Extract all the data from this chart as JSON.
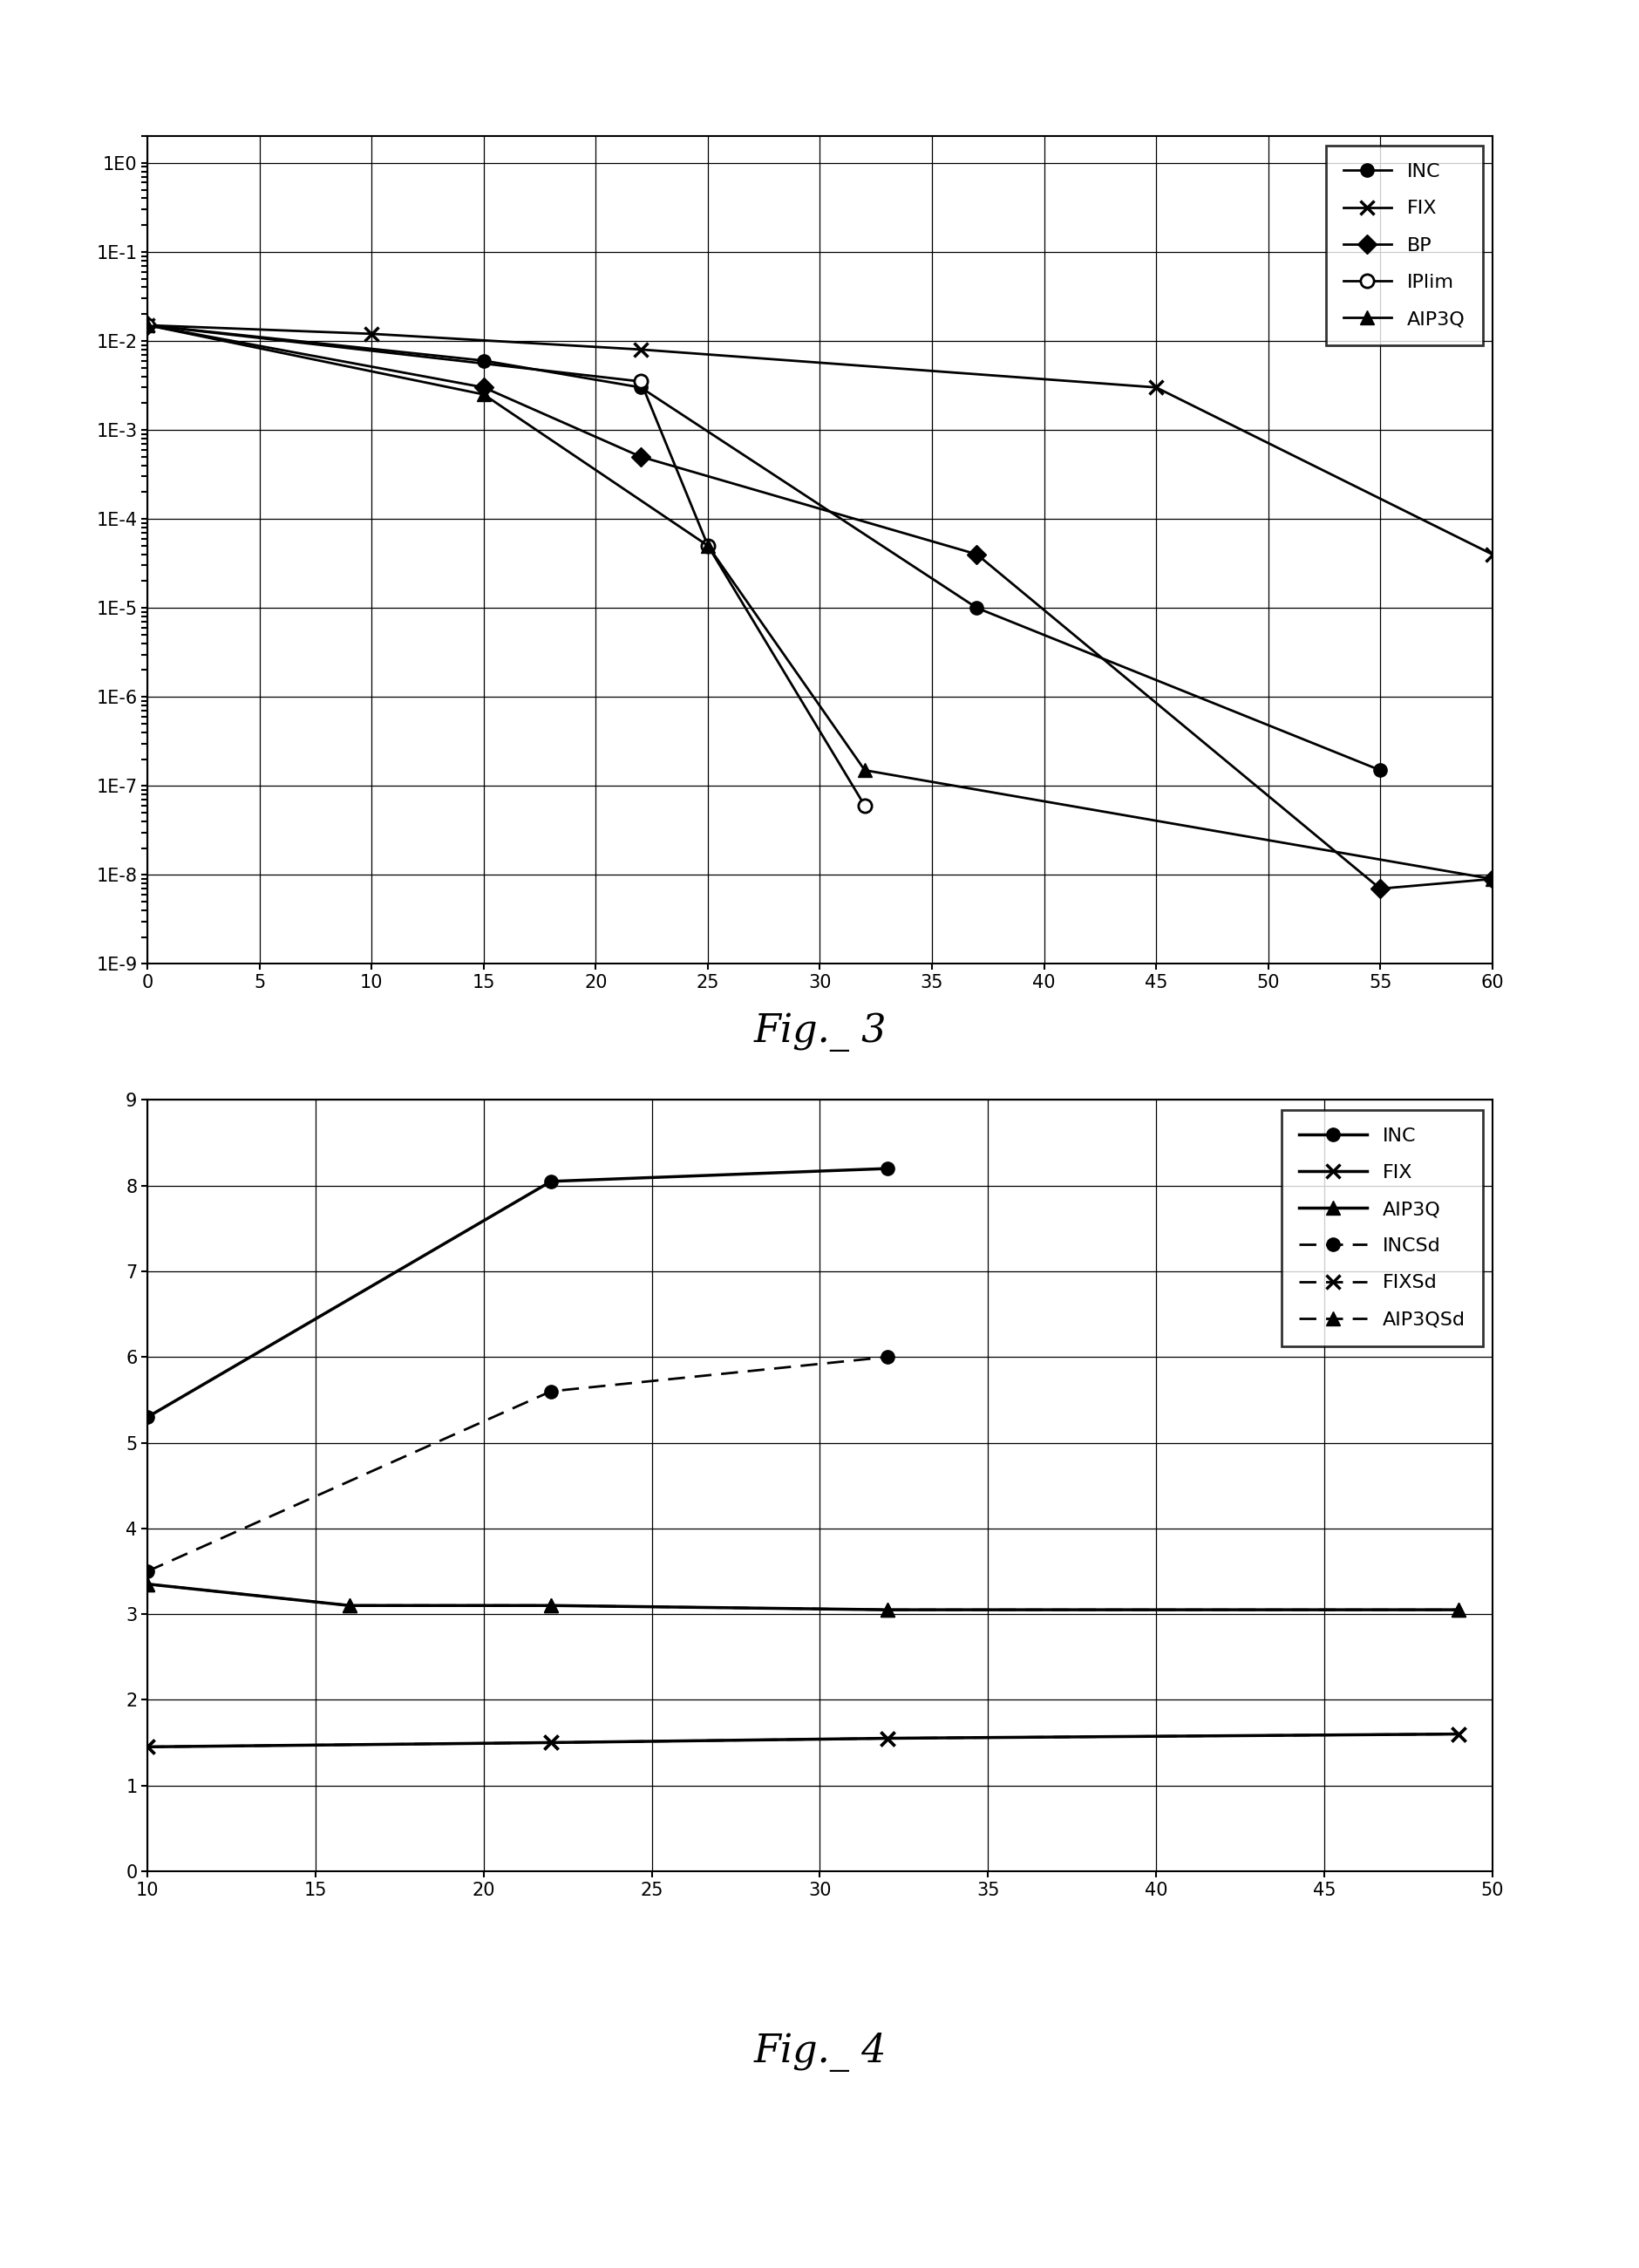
{
  "fig3": {
    "INC": {
      "x": [
        0,
        15,
        22,
        37,
        55
      ],
      "y": [
        0.015,
        0.006,
        0.003,
        1e-05,
        1.5e-07
      ]
    },
    "FIX": {
      "x": [
        0,
        10,
        22,
        45,
        60
      ],
      "y": [
        0.015,
        0.012,
        0.008,
        0.003,
        4e-05
      ]
    },
    "BP": {
      "x": [
        0,
        15,
        22,
        37,
        55,
        60
      ],
      "y": [
        0.015,
        0.003,
        0.0005,
        4e-05,
        7e-09,
        9e-09
      ]
    },
    "IPlim": {
      "x": [
        0,
        22,
        25,
        32
      ],
      "y": [
        0.015,
        0.0035,
        5e-05,
        6e-08
      ]
    },
    "AIP3Q": {
      "x": [
        0,
        15,
        25,
        32,
        60
      ],
      "y": [
        0.015,
        0.0025,
        5e-05,
        1.5e-07,
        9e-09
      ]
    },
    "xlim": [
      0,
      60
    ],
    "ylim_min": 1e-09,
    "ylim_max": 2.0,
    "xticks": [
      0,
      5,
      10,
      15,
      20,
      25,
      30,
      35,
      40,
      45,
      50,
      55,
      60
    ],
    "ytick_labels": [
      "1E-9",
      "1E-8",
      "1E-7",
      "1E-6",
      "1E-5",
      "1E-4",
      "1E-3",
      "1E-2",
      "1E-1",
      "1E0"
    ],
    "ytick_vals": [
      1e-09,
      1e-08,
      1e-07,
      1e-06,
      1e-05,
      0.0001,
      0.001,
      0.01,
      0.1,
      1.0
    ]
  },
  "fig4": {
    "INC": {
      "x": [
        10,
        22,
        32
      ],
      "y": [
        5.3,
        8.05,
        8.2
      ]
    },
    "FIX": {
      "x": [
        10,
        22,
        32,
        49
      ],
      "y": [
        1.45,
        1.5,
        1.55,
        1.6
      ]
    },
    "AIP3Q": {
      "x": [
        10,
        16,
        22,
        32,
        49
      ],
      "y": [
        3.35,
        3.1,
        3.1,
        3.05,
        3.05
      ]
    },
    "INCSd": {
      "x": [
        10,
        22,
        32
      ],
      "y": [
        3.5,
        5.6,
        6.0
      ]
    },
    "FIXSd": {
      "x": [
        10,
        22,
        32,
        49
      ],
      "y": [
        1.45,
        1.5,
        1.55,
        1.6
      ]
    },
    "AIP3QSd": {
      "x": [
        10,
        16,
        22,
        32,
        49
      ],
      "y": [
        3.35,
        3.1,
        3.1,
        3.05,
        3.05
      ]
    },
    "xlim": [
      10,
      50
    ],
    "ylim": [
      0,
      9
    ],
    "xticks": [
      10,
      15,
      20,
      25,
      30,
      35,
      40,
      45,
      50
    ],
    "yticks": [
      0,
      1,
      2,
      3,
      4,
      5,
      6,
      7,
      8,
      9
    ]
  },
  "fig3_caption": "Fig._ 3",
  "fig4_caption": "Fig._ 4",
  "line_color": "#000000",
  "background_color": "#ffffff"
}
